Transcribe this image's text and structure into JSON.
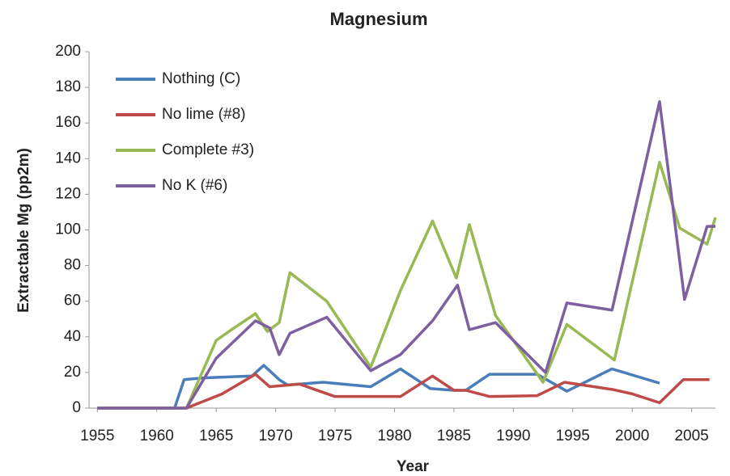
{
  "chart_data": {
    "type": "line",
    "title": "Magnesium",
    "x_label": "Year",
    "y_label": "Extractable Mg (pp2m)",
    "xlim": [
      1954.3,
      2007
    ],
    "ylim": [
      0,
      200
    ],
    "xticks": [
      1955,
      1960,
      1965,
      1970,
      1975,
      1980,
      1985,
      1990,
      1995,
      2000,
      2005
    ],
    "yticks": [
      0,
      20,
      40,
      60,
      80,
      100,
      120,
      140,
      160,
      180,
      200
    ],
    "grid": false,
    "legend": "upper left",
    "series": [
      {
        "name": "Nothing (C)",
        "color": "#4a7ebb",
        "x": [
          1955,
          1961.5,
          1962.3,
          1964,
          1968,
          1969,
          1970.3,
          1971,
          1974,
          1978,
          1980.5,
          1983,
          1985,
          1986,
          1988,
          1992,
          1994.5,
          1998.3,
          2002.3
        ],
        "values": [
          0,
          0,
          16,
          17,
          18,
          24,
          16,
          13,
          14.5,
          12,
          22,
          11,
          10,
          10,
          19,
          19,
          9.5,
          22,
          14
        ]
      },
      {
        "name": "No lime (#8)",
        "color": "#be4b48",
        "x": [
          1955,
          1962.5,
          1965.5,
          1968.3,
          1969.5,
          1972,
          1975,
          1980.5,
          1983.2,
          1985,
          1986,
          1988,
          1992,
          1994.3,
          1998.3,
          2000,
          2002.3,
          2004.3,
          2006.5
        ],
        "values": [
          0,
          0,
          8,
          19,
          12,
          13.5,
          6.5,
          6.5,
          18,
          10,
          10,
          6.5,
          7,
          14.5,
          10.5,
          8,
          3,
          16,
          16
        ]
      },
      {
        "name": "Complete #3)",
        "color": "#98b954",
        "x": [
          1955,
          1962.5,
          1965,
          1966.5,
          1968.3,
          1969.3,
          1970.3,
          1971.2,
          1974.3,
          1978,
          1980.5,
          1983.2,
          1985.2,
          1986.3,
          1988.5,
          1992.5,
          1994.5,
          1998.5,
          2002.3,
          2004,
          2006.3,
          2007
        ],
        "values": [
          0,
          0,
          38,
          45,
          53,
          43,
          48,
          76,
          60,
          23,
          66,
          105,
          73,
          103,
          52,
          14.5,
          47,
          27,
          138,
          101,
          92,
          107
        ]
      },
      {
        "name": "No K (#6)",
        "color": "#7d60a0",
        "x": [
          1955,
          1962.5,
          1965,
          1968.3,
          1969.5,
          1970.3,
          1971.2,
          1974.3,
          1978,
          1980.5,
          1983.2,
          1985.3,
          1986.3,
          1988.5,
          1992.7,
          1994.5,
          1998.3,
          2002.3,
          2004.4,
          2006.3,
          2007
        ],
        "values": [
          0,
          0,
          28,
          49,
          45,
          30,
          42,
          51,
          21,
          30,
          49,
          69,
          44,
          48,
          20,
          59,
          55,
          172,
          61,
          102,
          102
        ]
      }
    ]
  }
}
